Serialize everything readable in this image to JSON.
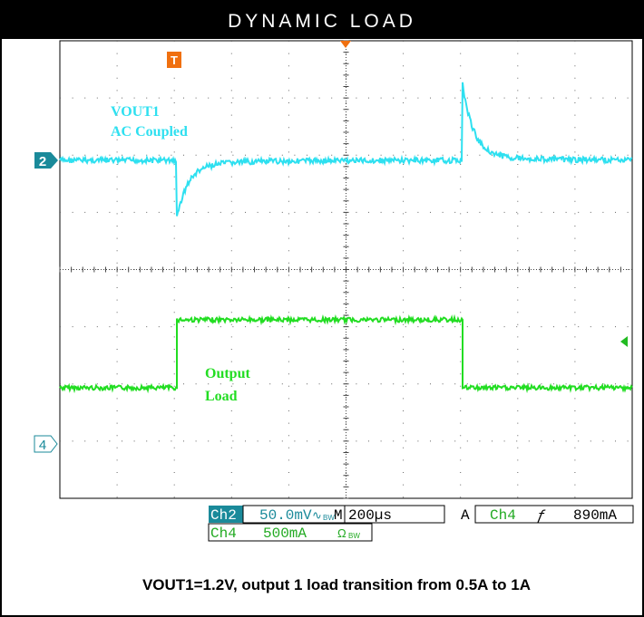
{
  "header": {
    "title": "DYNAMIC LOAD"
  },
  "traces": {
    "ch2_label": "VOUT1",
    "ch2_coupling": "AC Coupled",
    "ch4_label_1": "Output",
    "ch4_label_2": "Load"
  },
  "markers": {
    "ch2": "2",
    "ch4": "4",
    "trigger": "T"
  },
  "status": {
    "ch2": "Ch2",
    "ch2_scale": "50.0mV",
    "ch2_coupling": "∿",
    "bw": "BW",
    "time_prefix": "M",
    "time_scale": "200µs",
    "trig_prefix": "A",
    "trig_source": "Ch4",
    "trig_slope": "ƒ",
    "trig_level": "890mA",
    "ch4": "Ch4",
    "ch4_scale": "500mA",
    "ch4_coupling": "Ω"
  },
  "caption": "VOUT1=1.2V, output 1 load transition from 0.5A to 1A"
}
